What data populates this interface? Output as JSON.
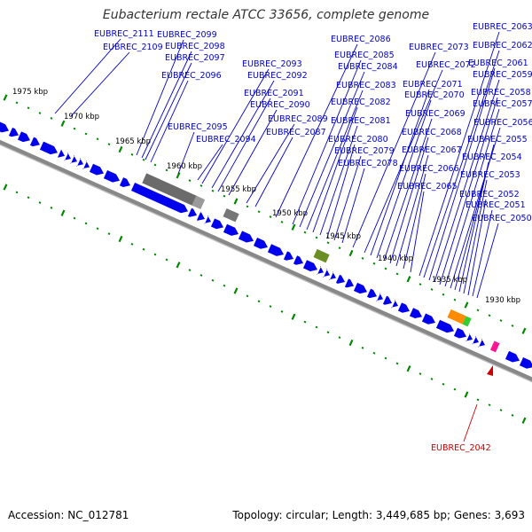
{
  "title": "Eubacterium rectale ATCC 33656, complete genome",
  "footer": {
    "accession": "Accession: NC_012781",
    "summary": "Topology: circular; Length: 3,449,685 bp; Genes: 3,693"
  },
  "colors": {
    "gene_blue": "#0000ee",
    "label_blue": "#0000cc",
    "highlight_red": "#cc0000",
    "tick_green": "#008800",
    "backbone_gray": "#888888",
    "repeat_gray": "#6b6b6b",
    "olive": "#6b8e23",
    "orange": "#ff8c00",
    "green": "#33cc33",
    "magenta": "#ff1493"
  },
  "kbp_labels": [
    "1975 kbp",
    "1970 kbp",
    "1965 kbp",
    "1960 kbp",
    "1955 kbp",
    "1950 kbp",
    "1945 kbp",
    "1940 kbp",
    "1935 kbp",
    "1930 kbp"
  ],
  "gene_labels": [
    "EUBREC_2111",
    "EUBREC_2109",
    "EUBREC_2099",
    "EUBREC_2098",
    "EUBREC_2097",
    "EUBREC_2096",
    "EUBREC_2095",
    "EUBREC_2094",
    "EUBREC_2093",
    "EUBREC_2092",
    "EUBREC_2091",
    "EUBREC_2090",
    "EUBREC_2089",
    "EUBREC_2087",
    "EUBREC_2086",
    "EUBREC_2085",
    "EUBREC_2084",
    "EUBREC_2083",
    "EUBREC_2082",
    "EUBREC_2081",
    "EUBREC_2080",
    "EUBREC_2079",
    "EUBREC_2078",
    "EUBREC_2073",
    "EUBREC_2072",
    "EUBREC_2071",
    "EUBREC_2070",
    "EUBREC_2069",
    "EUBREC_2068",
    "EUBREC_2067",
    "EUBREC_2066",
    "EUBREC_2065",
    "EUBREC_2063",
    "EUBREC_2062",
    "EUBREC_2061",
    "EUBREC_2059",
    "EUBREC_2058",
    "EUBREC_2057",
    "EUBREC_2056",
    "EUBREC_2055",
    "EUBREC_2054",
    "EUBREC_2053",
    "EUBREC_2052",
    "EUBREC_2051",
    "EUBREC_2050"
  ],
  "highlighted_gene": "EUBREC_2042"
}
